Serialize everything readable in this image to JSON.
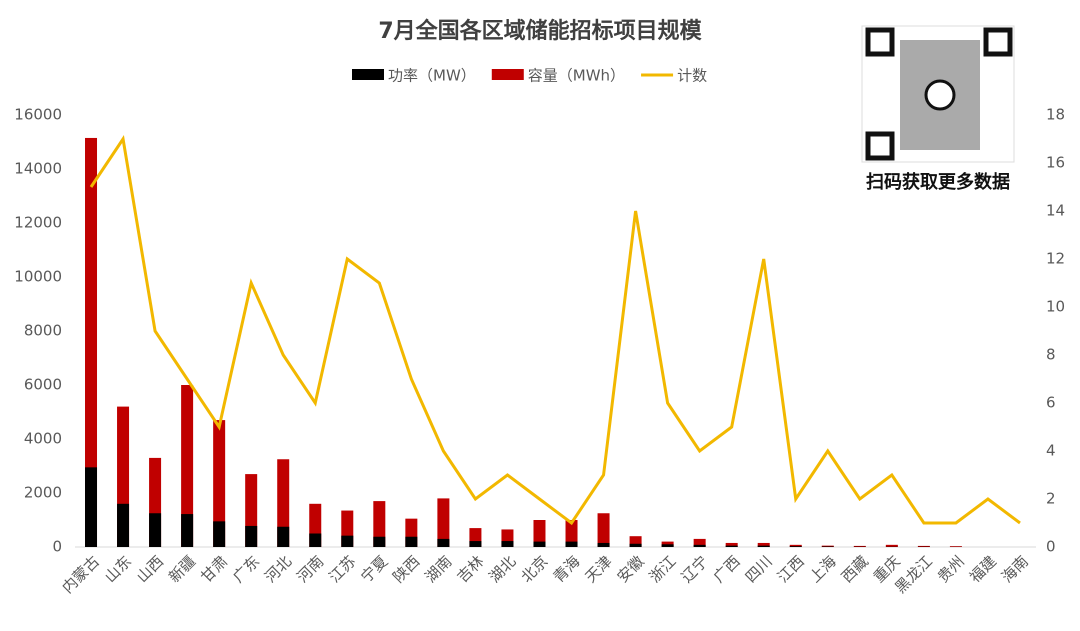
{
  "chart_data": {
    "type": "bar-line",
    "title": "7月全国各区域储能招标项目规模",
    "note": "扫码获取更多数据",
    "categories": [
      "内蒙古",
      "山东",
      "山西",
      "新疆",
      "甘肃",
      "广东",
      "河北",
      "河南",
      "江苏",
      "宁夏",
      "陕西",
      "湖南",
      "吉林",
      "湖北",
      "北京",
      "青海",
      "天津",
      "安徽",
      "浙江",
      "辽宁",
      "广西",
      "四川",
      "江西",
      "上海",
      "西藏",
      "重庆",
      "黑龙江",
      "贵州",
      "福建",
      "海南"
    ],
    "series": [
      {
        "name": "容量（MWh）",
        "color": "#c00000",
        "type": "bar",
        "values": [
          15150,
          5200,
          3300,
          6000,
          4700,
          2700,
          3250,
          1600,
          1350,
          1700,
          1050,
          1800,
          700,
          650,
          1000,
          1000,
          1250,
          400,
          200,
          300,
          150,
          150,
          80,
          50,
          40,
          80,
          40,
          30,
          0,
          0
        ]
      },
      {
        "name": "功率（MW）",
        "color": "#000000",
        "type": "bar",
        "values": [
          2950,
          1600,
          1250,
          1220,
          950,
          780,
          750,
          500,
          420,
          380,
          380,
          300,
          220,
          220,
          200,
          200,
          150,
          120,
          100,
          80,
          50,
          50,
          30,
          20,
          10,
          10,
          10,
          5,
          0,
          0
        ]
      },
      {
        "name": "计数",
        "color": "#f2b800",
        "type": "line",
        "axis": "y2",
        "values": [
          15,
          17,
          9,
          7,
          5,
          11,
          8,
          6,
          12,
          11,
          7,
          4,
          2,
          3,
          2,
          1,
          3,
          14,
          6,
          4,
          5,
          12,
          2,
          4,
          2,
          3,
          1,
          1,
          2,
          1
        ]
      }
    ],
    "legend_order": [
      1,
      0,
      2
    ],
    "ylim": [
      0,
      16000
    ],
    "yticks": [
      0,
      2000,
      4000,
      6000,
      8000,
      10000,
      12000,
      14000,
      16000
    ],
    "y2lim": [
      0,
      18
    ],
    "y2ticks": [
      0,
      2,
      4,
      6,
      8,
      10,
      12,
      14,
      16,
      18
    ]
  }
}
